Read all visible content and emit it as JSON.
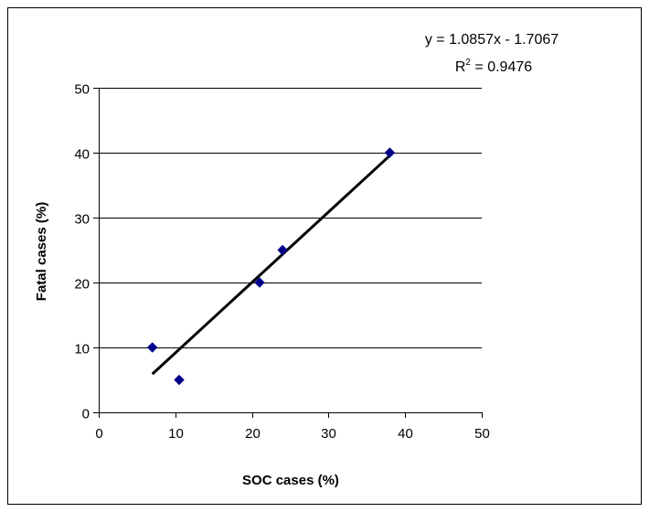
{
  "chart_data": {
    "type": "scatter",
    "title": "",
    "xlabel": "SOC cases (%)",
    "ylabel": "Fatal cases (%)",
    "xlim": [
      0,
      50
    ],
    "ylim": [
      0,
      50
    ],
    "x_ticks": [
      "0",
      "10",
      "20",
      "30",
      "40",
      "50"
    ],
    "y_ticks": [
      "0",
      "10",
      "20",
      "30",
      "40",
      "50"
    ],
    "grid": "horizontal",
    "series": [
      {
        "points": [
          {
            "x": 7,
            "y": 10
          },
          {
            "x": 10.5,
            "y": 5
          },
          {
            "x": 21,
            "y": 20
          },
          {
            "x": 24,
            "y": 25
          },
          {
            "x": 38,
            "y": 40
          }
        ],
        "marker": "diamond",
        "color": "#00008b"
      }
    ],
    "trendline": {
      "type": "linear",
      "slope": 1.0857,
      "intercept": -1.7067,
      "x_range": [
        7,
        38
      ],
      "color": "#000000"
    },
    "annotations": {
      "equation": "y = 1.0857x - 1.7067",
      "r_squared_label": "R",
      "r_squared_exponent": "2",
      "r_squared_value": " = 0.9476"
    }
  }
}
